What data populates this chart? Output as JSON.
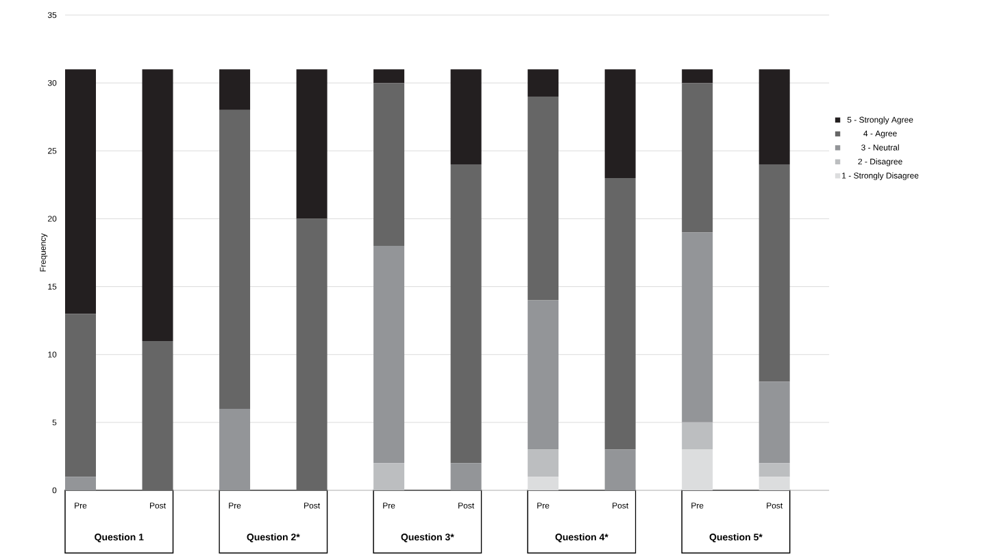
{
  "chart_data": {
    "type": "bar",
    "stacked": true,
    "ylabel": "Frequency",
    "categories": [
      "Pre",
      "Post",
      "Pre",
      "Post",
      "Pre",
      "Post",
      "Pre",
      "Post",
      "Pre",
      "Post"
    ],
    "series": [
      {
        "name": "1 - Strongly Disagree",
        "color": "#dcddde",
        "values": [
          0,
          0,
          0,
          0,
          0,
          0,
          1,
          0,
          3,
          1
        ]
      },
      {
        "name": "2 - Disagree",
        "color": "#bcbec0",
        "values": [
          0,
          0,
          0,
          0,
          2,
          0,
          2,
          0,
          2,
          1
        ]
      },
      {
        "name": "3 - Neutral",
        "color": "#939598",
        "values": [
          1,
          0,
          6,
          0,
          16,
          2,
          11,
          3,
          14,
          6
        ]
      },
      {
        "name": "4 - Agree",
        "color": "#666666",
        "values": [
          12,
          11,
          22,
          20,
          12,
          22,
          15,
          20,
          11,
          16
        ]
      },
      {
        "name": "5 - Strongly Agree",
        "color": "#231f20",
        "values": [
          18,
          20,
          3,
          11,
          1,
          7,
          2,
          8,
          1,
          7
        ]
      }
    ],
    "ylim": [
      0,
      35
    ],
    "yticks": [
      0,
      5,
      10,
      15,
      20,
      25,
      30,
      35
    ],
    "grid": "y",
    "legend": "right",
    "annotations": [
      "Question 1",
      "Question 2*",
      "Question 3*",
      "Question 4*",
      "Question 5*"
    ]
  }
}
